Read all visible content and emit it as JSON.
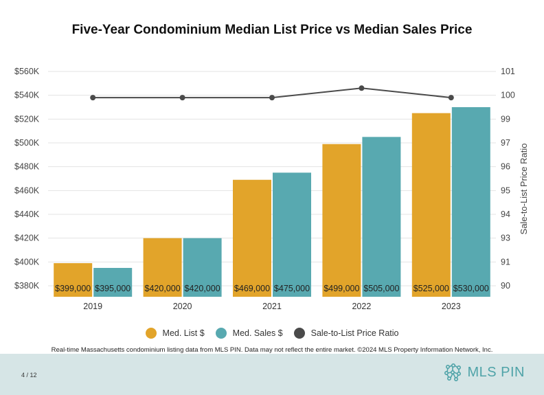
{
  "title": "Five-Year Condominium Median List Price vs Median Sales Price",
  "footnote": "Real-time Massachusetts condominium listing data from MLS PIN. Data may not reflect the entire market. ©2024 MLS Property Information Network, Inc.",
  "page_number": "4 / 12",
  "logo": {
    "text": "MLS PIN",
    "icon": "network-icon"
  },
  "colors": {
    "list": "#E2A42A",
    "sales": "#58A9B0",
    "ratio": "#4a4a4a"
  },
  "legend": {
    "list": "Med. List $",
    "sales": "Med. Sales $",
    "ratio": "Sale-to-List Price Ratio"
  },
  "chart_data": {
    "type": "bar",
    "title": "Five-Year Condominium Median List Price vs Median Sales Price",
    "categories": [
      "2019",
      "2020",
      "2021",
      "2022",
      "2023"
    ],
    "series": [
      {
        "name": "Med. List $",
        "values": [
          399000,
          420000,
          469000,
          499000,
          525000
        ],
        "labels": [
          "$399,000",
          "$420,000",
          "$469,000",
          "$499,000",
          "$525,000"
        ]
      },
      {
        "name": "Med. Sales $",
        "values": [
          395000,
          420000,
          475000,
          505000,
          530000
        ],
        "labels": [
          "$395,000",
          "$420,000",
          "$475,000",
          "$505,000",
          "$530,000"
        ]
      },
      {
        "name": "Sale-to-List Price Ratio",
        "type": "line",
        "axis": "right",
        "values": [
          99.9,
          99.9,
          99.9,
          100.3,
          99.9
        ]
      }
    ],
    "y_left": {
      "ticks": [
        "$380K",
        "$400K",
        "$420K",
        "$440K",
        "$460K",
        "$480K",
        "$500K",
        "$520K",
        "$540K",
        "$560K"
      ],
      "ylim": [
        380000,
        560000
      ]
    },
    "y_right": {
      "label": "Sale-to-List Price Ratio",
      "ticks": [
        "90",
        "91",
        "93",
        "94",
        "95",
        "96",
        "97",
        "99",
        "100",
        "101"
      ],
      "ylim": [
        90,
        101
      ]
    },
    "grid": true,
    "legend_position": "bottom"
  }
}
